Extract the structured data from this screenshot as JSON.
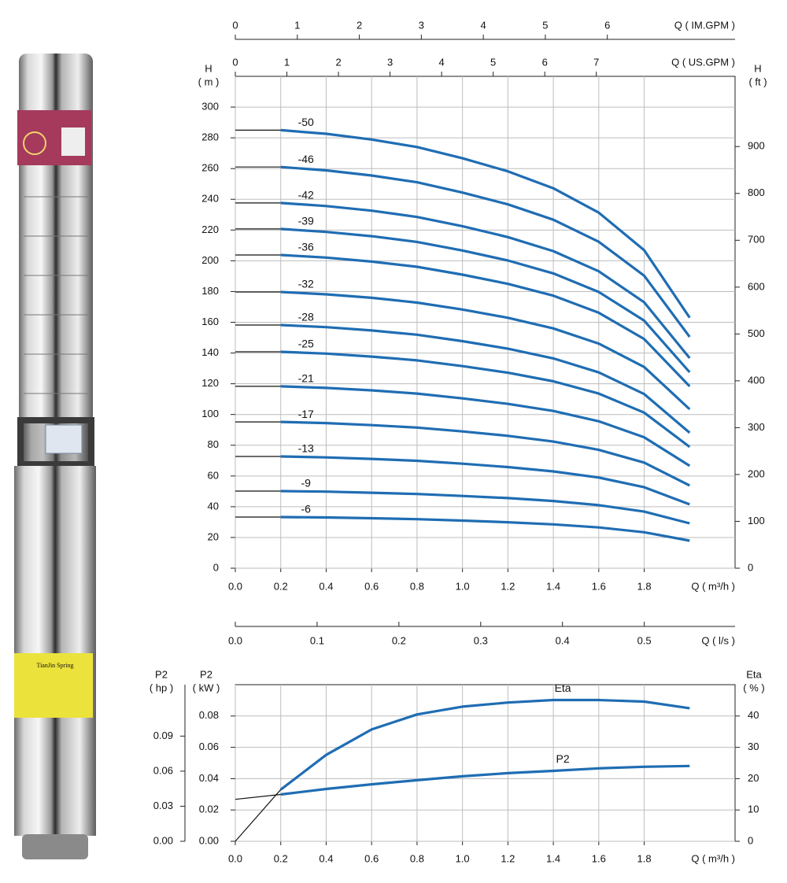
{
  "product_label": "TianJin Spring",
  "chart_data": [
    {
      "type": "line",
      "x": [
        0,
        0.2,
        0.4,
        0.6,
        0.8,
        1.0,
        1.2,
        1.4,
        1.6,
        1.8,
        2.0
      ],
      "xlim": [
        0,
        2.2
      ],
      "xticks": [
        {
          "value": 0,
          "label": "0.0"
        },
        0.2,
        0.4,
        0.6,
        0.8,
        {
          "value": 1,
          "label": "1.0"
        },
        1.2,
        1.4,
        1.6,
        1.8
      ],
      "xlabel": "Q ( m³/h )",
      "ylabel": "H",
      "yunit": "( m )",
      "ylim": [
        0,
        320
      ],
      "yticks": [
        0,
        20,
        40,
        60,
        80,
        100,
        120,
        140,
        160,
        180,
        200,
        220,
        240,
        260,
        280,
        300
      ],
      "y2label": "H",
      "y2unit": "( ft )",
      "y2lim": [
        0,
        1049.9
      ],
      "y2ticks": [
        0,
        100,
        200,
        300,
        400,
        500,
        600,
        700,
        800,
        900
      ],
      "extra_x_axes": [
        {
          "label": "Q ( IM.GPM )",
          "lim": [
            0,
            8.06
          ],
          "ticks": [
            0,
            1,
            2,
            3,
            4,
            5,
            6
          ]
        },
        {
          "label": "Q ( US.GPM )",
          "lim": [
            0,
            9.69
          ],
          "ticks": [
            0,
            1,
            2,
            3,
            4,
            5,
            6,
            7
          ]
        },
        {
          "label": "Q ( l/s )",
          "lim": [
            0,
            0.611
          ],
          "ticks": [
            {
              "value": 0,
              "label": "0.0"
            },
            0.1,
            0.2,
            0.3,
            0.4,
            0.5
          ]
        }
      ],
      "grid": true,
      "lead_color": "#111111",
      "series": [
        {
          "name": "-50",
          "color": "#1f6db3",
          "values": [
            285,
            285,
            282.6,
            278.9,
            274,
            266.7,
            258.2,
            247.2,
            231.3,
            206.9,
            163
          ]
        },
        {
          "name": "-46",
          "color": "#1f6db3",
          "values": [
            261,
            261,
            258.8,
            255.5,
            251.1,
            244.4,
            236.7,
            226.7,
            212.4,
            190.3,
            150.5
          ]
        },
        {
          "name": "-42",
          "color": "#1f6db3",
          "values": [
            237.6,
            237.6,
            235.6,
            232.6,
            228.5,
            222.5,
            215.4,
            206.3,
            193.2,
            173,
            136.7
          ]
        },
        {
          "name": "-39",
          "color": "#1f6db3",
          "values": [
            220.7,
            220.7,
            218.8,
            216,
            212.3,
            206.7,
            200.2,
            191.8,
            179.7,
            161.1,
            127.5
          ]
        },
        {
          "name": "-36",
          "color": "#1f6db3",
          "values": [
            203.8,
            203.8,
            202.1,
            199.5,
            196.1,
            191,
            185,
            177.3,
            166.2,
            149.1,
            118.3
          ]
        },
        {
          "name": "-32",
          "color": "#1f6db3",
          "values": [
            179.7,
            179.7,
            178.2,
            175.9,
            172.8,
            168.3,
            162.9,
            156,
            146.1,
            130.9,
            103.4
          ]
        },
        {
          "name": "-28",
          "color": "#1f6db3",
          "values": [
            158.2,
            158.2,
            156.8,
            154.7,
            151.9,
            147.7,
            142.8,
            136.5,
            127.4,
            113.3,
            88.1
          ]
        },
        {
          "name": "-25",
          "color": "#1f6db3",
          "values": [
            140.8,
            140.8,
            139.6,
            137.7,
            135.2,
            131.5,
            127.2,
            121.6,
            113.6,
            101.2,
            78.9
          ]
        },
        {
          "name": "-21",
          "color": "#1f6db3",
          "values": [
            118.3,
            118.3,
            117.3,
            115.7,
            113.6,
            110.5,
            106.9,
            102.3,
            95.6,
            85.2,
            66.6
          ]
        },
        {
          "name": "-17",
          "color": "#1f6db3",
          "values": [
            95.2,
            95.2,
            94.4,
            93.1,
            91.5,
            89,
            86.1,
            82.4,
            77,
            68.7,
            53.8
          ]
        },
        {
          "name": "-13",
          "color": "#1f6db3",
          "values": [
            72.7,
            72.7,
            72.1,
            71.1,
            69.9,
            68,
            65.8,
            63,
            59,
            52.7,
            41.5
          ]
        },
        {
          "name": "-9",
          "color": "#1f6db3",
          "values": [
            50.2,
            50.2,
            49.8,
            49.1,
            48.3,
            47,
            45.6,
            43.7,
            41,
            36.8,
            29.2
          ]
        },
        {
          "name": "-6",
          "color": "#1f6db3",
          "values": [
            33.3,
            33.3,
            33,
            32.5,
            31.9,
            31,
            29.9,
            28.5,
            26.5,
            23.4,
            17.9
          ]
        }
      ]
    },
    {
      "type": "line",
      "x": [
        0,
        0.2,
        0.4,
        0.6,
        0.8,
        1.0,
        1.2,
        1.4,
        1.6,
        1.8,
        2.0
      ],
      "xlim": [
        0,
        2.2
      ],
      "xticks": [
        {
          "value": 0,
          "label": "0.0"
        },
        0.2,
        0.4,
        0.6,
        0.8,
        {
          "value": 1,
          "label": "1.0"
        },
        1.2,
        1.4,
        1.6,
        1.8
      ],
      "xlabel": "Q ( m³/h )",
      "ylabel": "P2",
      "yunit": "( kW )",
      "ylim": [
        0,
        0.1
      ],
      "yticks": [
        {
          "value": 0,
          "label": "0.00"
        },
        0.02,
        0.04,
        0.06,
        0.08
      ],
      "y2label": "Eta",
      "y2unit": "( % )",
      "y2lim": [
        0,
        50
      ],
      "y2ticks": [
        0,
        10,
        20,
        30,
        40
      ],
      "y3label": "P2",
      "y3unit": "( hp )",
      "y3lim": [
        0,
        0.134
      ],
      "y3ticks": [
        {
          "value": 0,
          "label": "0.00"
        },
        0.03,
        0.06,
        0.09
      ],
      "grid": true,
      "lead_color": "#111111",
      "series": [
        {
          "name": "Eta",
          "color": "#1f6db3",
          "axis": "y2",
          "values": [
            0,
            16.5,
            27.6,
            35.7,
            40.5,
            43,
            44.3,
            45.1,
            45.1,
            44.6,
            42.5
          ]
        },
        {
          "name": "P2",
          "color": "#1f6db3",
          "values": [
            0.0268,
            0.0299,
            0.0334,
            0.0364,
            0.039,
            0.0415,
            0.0435,
            0.045,
            0.0466,
            0.0476,
            0.0481
          ]
        }
      ]
    }
  ]
}
